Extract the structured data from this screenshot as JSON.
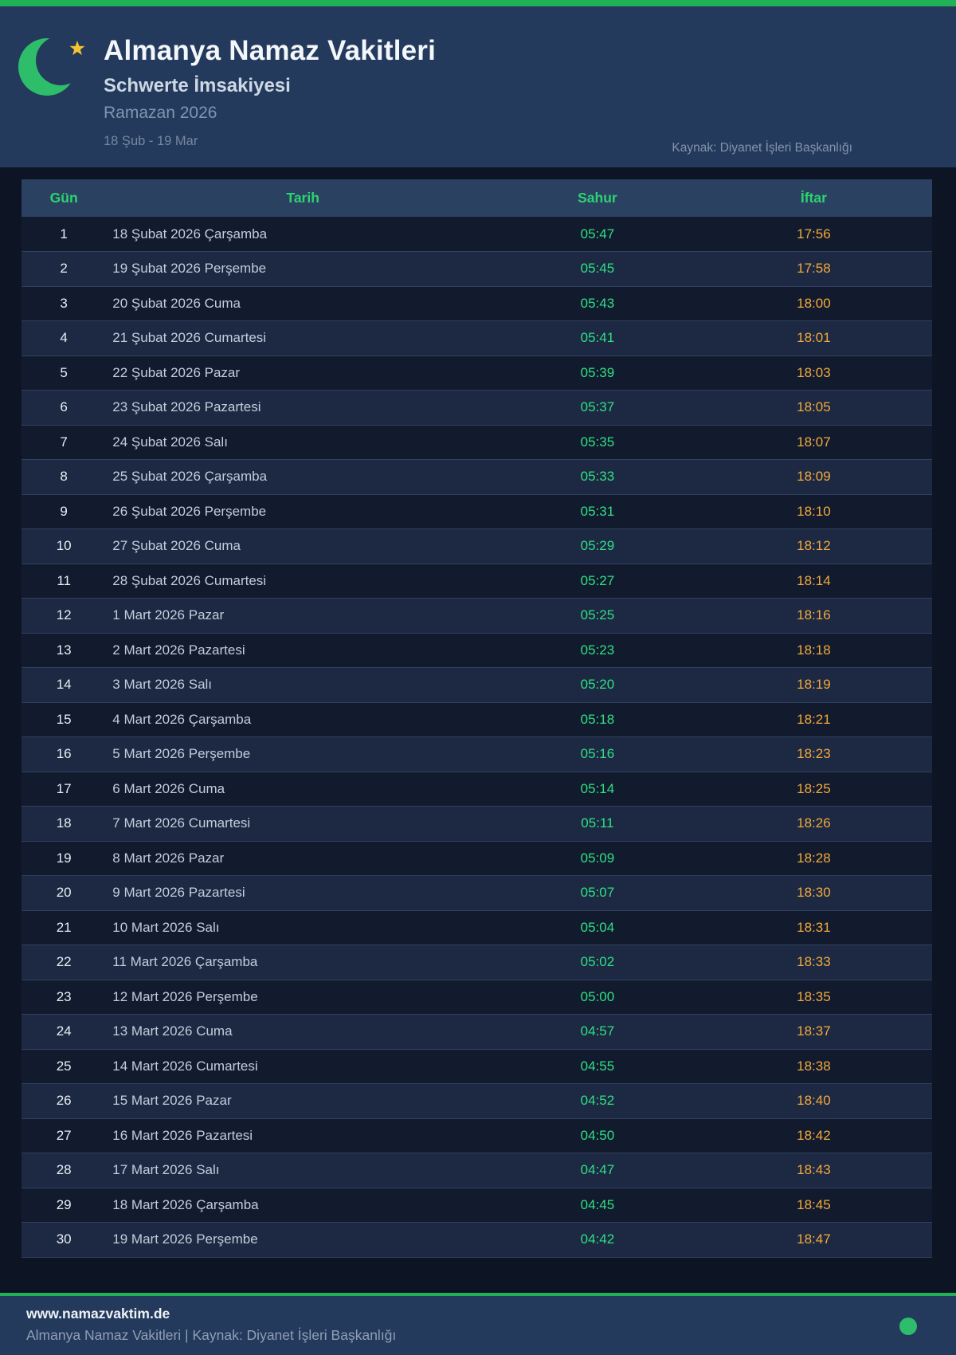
{
  "header": {
    "title": "Almanya Namaz Vakitleri",
    "subtitle": "Schwerte İmsakiyesi",
    "season": "Ramazan 2026",
    "date_range": "18 Şub - 19 Mar",
    "source": "Kaynak: Diyanet İşleri Başkanlığı",
    "icon": "crescent-moon-star-icon"
  },
  "table": {
    "columns": [
      "Gün",
      "Tarih",
      "Sahur",
      "İftar"
    ],
    "rows": [
      {
        "day": "1",
        "date": "18 Şubat 2026 Çarşamba",
        "sahur": "05:47",
        "iftar": "17:56"
      },
      {
        "day": "2",
        "date": "19 Şubat 2026 Perşembe",
        "sahur": "05:45",
        "iftar": "17:58"
      },
      {
        "day": "3",
        "date": "20 Şubat 2026 Cuma",
        "sahur": "05:43",
        "iftar": "18:00"
      },
      {
        "day": "4",
        "date": "21 Şubat 2026 Cumartesi",
        "sahur": "05:41",
        "iftar": "18:01"
      },
      {
        "day": "5",
        "date": "22 Şubat 2026 Pazar",
        "sahur": "05:39",
        "iftar": "18:03"
      },
      {
        "day": "6",
        "date": "23 Şubat 2026 Pazartesi",
        "sahur": "05:37",
        "iftar": "18:05"
      },
      {
        "day": "7",
        "date": "24 Şubat 2026 Salı",
        "sahur": "05:35",
        "iftar": "18:07"
      },
      {
        "day": "8",
        "date": "25 Şubat 2026 Çarşamba",
        "sahur": "05:33",
        "iftar": "18:09"
      },
      {
        "day": "9",
        "date": "26 Şubat 2026 Perşembe",
        "sahur": "05:31",
        "iftar": "18:10"
      },
      {
        "day": "10",
        "date": "27 Şubat 2026 Cuma",
        "sahur": "05:29",
        "iftar": "18:12"
      },
      {
        "day": "11",
        "date": "28 Şubat 2026 Cumartesi",
        "sahur": "05:27",
        "iftar": "18:14"
      },
      {
        "day": "12",
        "date": "1 Mart 2026 Pazar",
        "sahur": "05:25",
        "iftar": "18:16"
      },
      {
        "day": "13",
        "date": "2 Mart 2026 Pazartesi",
        "sahur": "05:23",
        "iftar": "18:18"
      },
      {
        "day": "14",
        "date": "3 Mart 2026 Salı",
        "sahur": "05:20",
        "iftar": "18:19"
      },
      {
        "day": "15",
        "date": "4 Mart 2026 Çarşamba",
        "sahur": "05:18",
        "iftar": "18:21"
      },
      {
        "day": "16",
        "date": "5 Mart 2026 Perşembe",
        "sahur": "05:16",
        "iftar": "18:23"
      },
      {
        "day": "17",
        "date": "6 Mart 2026 Cuma",
        "sahur": "05:14",
        "iftar": "18:25"
      },
      {
        "day": "18",
        "date": "7 Mart 2026 Cumartesi",
        "sahur": "05:11",
        "iftar": "18:26"
      },
      {
        "day": "19",
        "date": "8 Mart 2026 Pazar",
        "sahur": "05:09",
        "iftar": "18:28"
      },
      {
        "day": "20",
        "date": "9 Mart 2026 Pazartesi",
        "sahur": "05:07",
        "iftar": "18:30"
      },
      {
        "day": "21",
        "date": "10 Mart 2026 Salı",
        "sahur": "05:04",
        "iftar": "18:31"
      },
      {
        "day": "22",
        "date": "11 Mart 2026 Çarşamba",
        "sahur": "05:02",
        "iftar": "18:33"
      },
      {
        "day": "23",
        "date": "12 Mart 2026 Perşembe",
        "sahur": "05:00",
        "iftar": "18:35"
      },
      {
        "day": "24",
        "date": "13 Mart 2026 Cuma",
        "sahur": "04:57",
        "iftar": "18:37"
      },
      {
        "day": "25",
        "date": "14 Mart 2026 Cumartesi",
        "sahur": "04:55",
        "iftar": "18:38"
      },
      {
        "day": "26",
        "date": "15 Mart 2026 Pazar",
        "sahur": "04:52",
        "iftar": "18:40"
      },
      {
        "day": "27",
        "date": "16 Mart 2026 Pazartesi",
        "sahur": "04:50",
        "iftar": "18:42"
      },
      {
        "day": "28",
        "date": "17 Mart 2026 Salı",
        "sahur": "04:47",
        "iftar": "18:43"
      },
      {
        "day": "29",
        "date": "18 Mart 2026 Çarşamba",
        "sahur": "04:45",
        "iftar": "18:45"
      },
      {
        "day": "30",
        "date": "19 Mart 2026 Perşembe",
        "sahur": "04:42",
        "iftar": "18:47"
      }
    ]
  },
  "footer": {
    "website": "www.namazvaktim.de",
    "tagline": "Almanya Namaz Vakitleri | Kaynak: Diyanet İşleri Başkanlığı"
  },
  "colors": {
    "accent_green": "#21b157",
    "header_bg": "#243a5c",
    "page_bg": "#0d1423",
    "table_header_text": "#2dd36f",
    "sahur_time": "#2ee083",
    "iftar_time": "#f2a93c",
    "star_gold": "#f4c430",
    "crescent_green": "#2ebd6b"
  }
}
